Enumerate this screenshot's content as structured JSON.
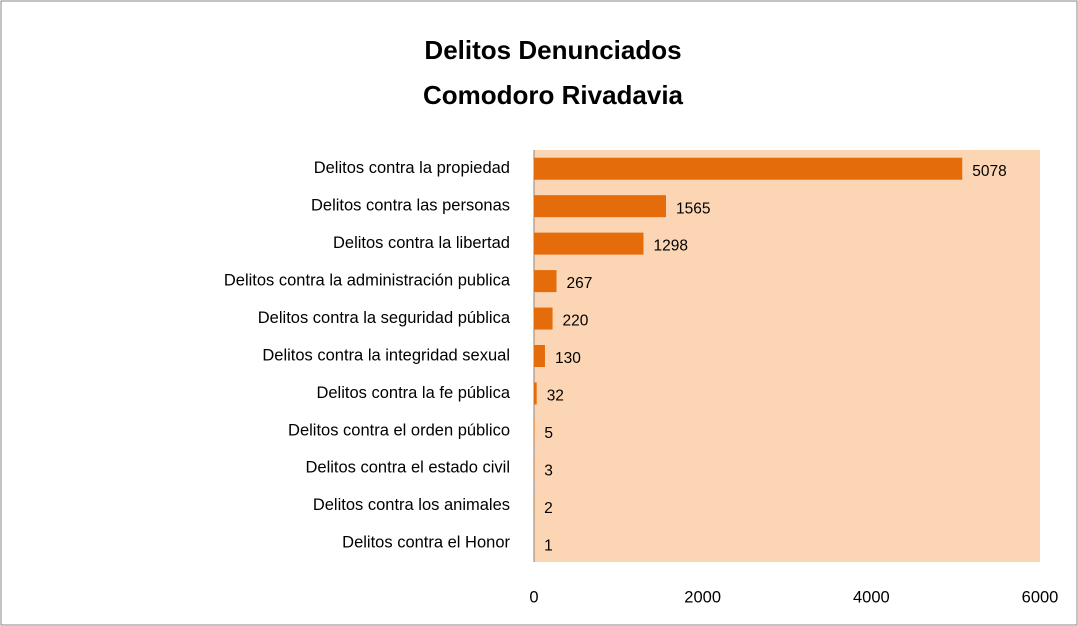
{
  "chart_data": {
    "type": "bar",
    "orientation": "horizontal",
    "title": [
      "Delitos Denunciados",
      "Comodoro Rivadavia"
    ],
    "categories": [
      "Delitos contra la propiedad",
      "Delitos contra las personas",
      "Delitos contra la libertad",
      "Delitos contra la administración publica",
      "Delitos contra la seguridad pública",
      "Delitos contra la integridad sexual",
      "Delitos contra la fe pública",
      "Delitos contra el orden público",
      "Delitos contra el estado civil",
      "Delitos contra los animales",
      "Delitos contra el Honor"
    ],
    "values": [
      5078,
      1565,
      1298,
      267,
      220,
      130,
      32,
      5,
      3,
      2,
      1
    ],
    "color": "#e46c0a",
    "plot_background": "#fcd5b5",
    "xlim": [
      0,
      6000
    ],
    "xticks": [
      0,
      2000,
      4000,
      6000
    ]
  }
}
